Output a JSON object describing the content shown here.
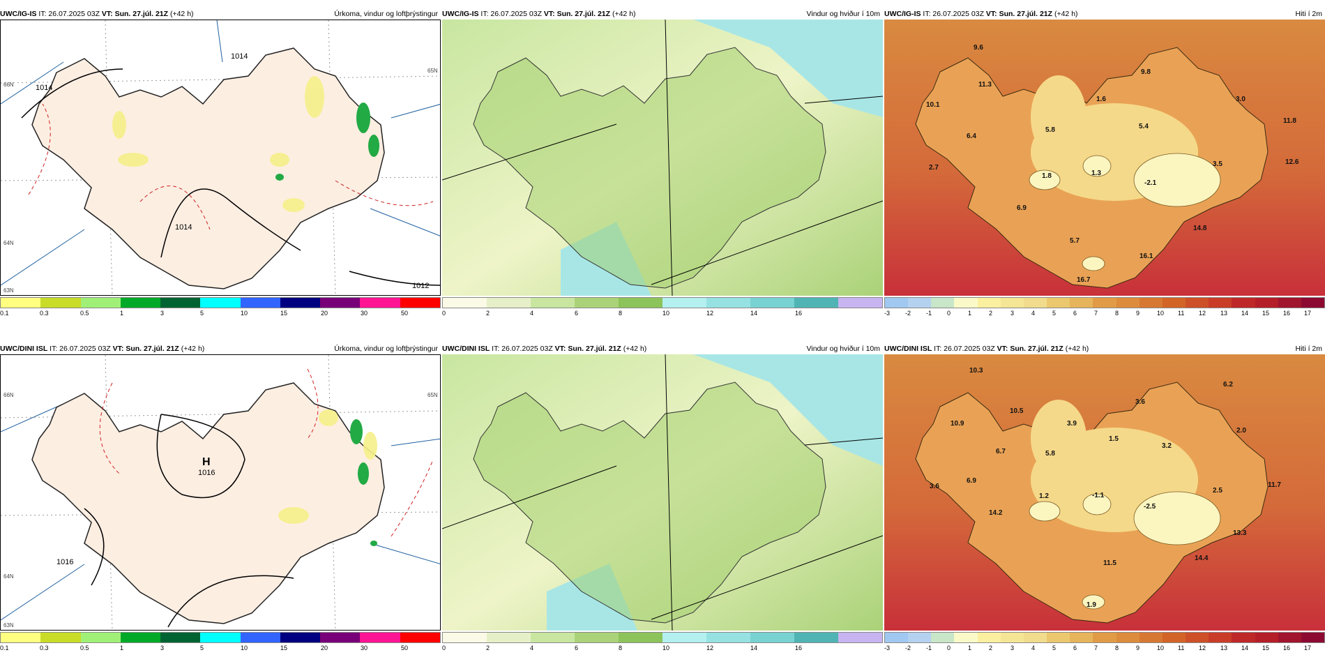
{
  "row1": {
    "precip": {
      "model": "UWC/IG-IS",
      "it": "IT: 26.07.2025 03Z",
      "vt_label": "VT:",
      "vt": "Sun. 27.júl. 21Z",
      "lead": "(+42 h)",
      "title": "Úrkoma, vindur og loftþrýstingur",
      "isobars": [
        "1014",
        "1014",
        "1014",
        "1012"
      ],
      "lat_labels": [
        "66N",
        "65N",
        "64N",
        "63N"
      ]
    },
    "wind": {
      "model": "UWC/IG-IS",
      "it": "IT: 26.07.2025 03Z",
      "vt_label": "VT:",
      "vt": "Sun. 27.júl. 21Z",
      "lead": "(+42 h)",
      "title": "Vindur og hviður í 10m"
    },
    "temp": {
      "model": "UWC/IG-IS",
      "it": "IT: 26.07.2025 03Z",
      "vt_label": "VT:",
      "vt": "Sun. 27.júl. 21Z",
      "lead": "(+42 h)",
      "title": "Hiti í 2m",
      "values": [
        "9.6",
        "11.3",
        "10.1",
        "6.4",
        "5.8",
        "1.6",
        "9.8",
        "5.4",
        "3.0",
        "11.8",
        "12.6",
        "2.7",
        "1.8",
        "1.3",
        "-2.1",
        "3.5",
        "6.9",
        "14.8",
        "5.7",
        "16.1",
        "16.7"
      ]
    }
  },
  "row2": {
    "precip": {
      "model": "UWC/DINI ISL",
      "it": "IT: 26.07.2025 03Z",
      "vt_label": "VT:",
      "vt": "Sun. 27.júl. 21Z",
      "lead": "(+42 h)",
      "title": "Úrkoma, vindur og loftþrýstingur",
      "high_letter": "H",
      "high_value": "1016",
      "isobars": [
        "1016"
      ],
      "lat_labels": [
        "66N",
        "65N",
        "64N",
        "63N"
      ]
    },
    "wind": {
      "model": "UWC/DINI ISL",
      "it": "IT: 26.07.2025 03Z",
      "vt_label": "VT:",
      "vt": "Sun. 27.júl. 21Z",
      "lead": "(+42 h)",
      "title": "Vindur og hviður í 10m"
    },
    "temp": {
      "model": "UWC/DINI ISL",
      "it": "IT: 26.07.2025 03Z",
      "vt_label": "VT:",
      "vt": "Sun. 27.júl. 21Z",
      "lead": "(+42 h)",
      "title": "Hiti í 2m",
      "values": [
        "10.3",
        "6.2",
        "10.5",
        "10.9",
        "3.9",
        "3.6",
        "1.5",
        "3.2",
        "2.0",
        "6.7",
        "5.8",
        "6.9",
        "3.6",
        "1.2",
        "-1.1",
        "-2.5",
        "2.5",
        "11.7",
        "14.2",
        "13.3",
        "14.4",
        "11.5",
        "1.9"
      ]
    }
  },
  "legends": {
    "precip": {
      "colors": [
        "#ffff80",
        "#c8dc28",
        "#a0f078",
        "#00aa28",
        "#006432",
        "#00ffff",
        "#3264ff",
        "#000080",
        "#780078",
        "#ff1493",
        "#ff0000"
      ],
      "ticks": [
        "0.1",
        "0.3",
        "0.5",
        "1",
        "3",
        "5",
        "10",
        "15",
        "20",
        "30",
        "50"
      ]
    },
    "wind": {
      "colors": [
        "#fafae6",
        "#e6f0c8",
        "#c8e6a0",
        "#aad278",
        "#8cc35a",
        "#b4f0f0",
        "#96e1e1",
        "#78d2d2",
        "#50b4b4",
        "#c8b4f0"
      ],
      "ticks": [
        "0",
        "2",
        "4",
        "6",
        "8",
        "10",
        "12",
        "14",
        "16"
      ]
    },
    "temp": {
      "colors": [
        "#a0c8f0",
        "#b4d2f0",
        "#c8e6c8",
        "#fafac8",
        "#faf0a0",
        "#f5e696",
        "#f0dc8c",
        "#ebc86e",
        "#e6b45a",
        "#e19b46",
        "#dc8c3c",
        "#d77832",
        "#d26428",
        "#cd5028",
        "#c83c28",
        "#be2828",
        "#b41e28",
        "#a0142d",
        "#8c0a32"
      ],
      "ticks": [
        "-3",
        "-2",
        "-1",
        "0",
        "1",
        "2",
        "3",
        "4",
        "5",
        "6",
        "7",
        "8",
        "9",
        "10",
        "11",
        "12",
        "13",
        "14",
        "15",
        "16",
        "17"
      ]
    }
  }
}
